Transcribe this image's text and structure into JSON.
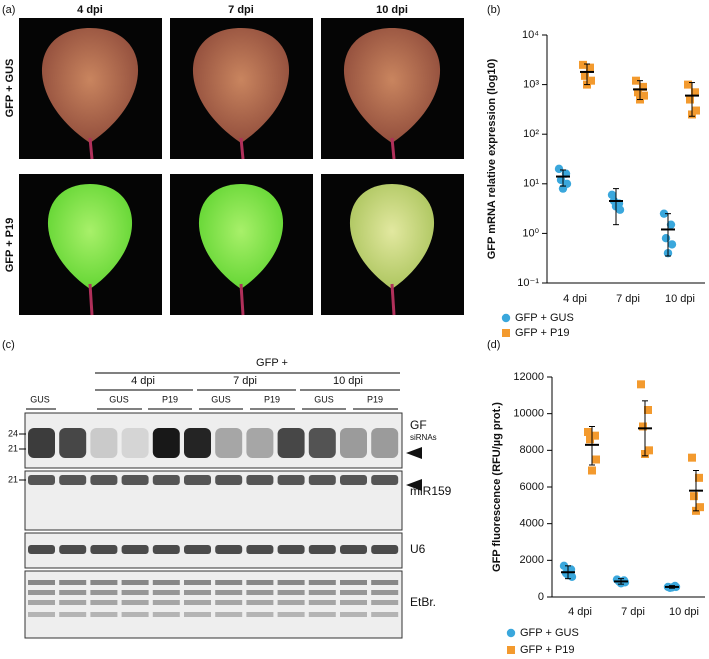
{
  "panel_a": {
    "label": "(a)",
    "columns": [
      "4 dpi",
      "7 dpi",
      "10 dpi"
    ],
    "rows": [
      "GFP + GUS",
      "GFP + P19"
    ]
  },
  "panel_c": {
    "label": "(c)",
    "group": "GFP +",
    "timepoints": [
      "4 dpi",
      "7 dpi",
      "10 dpi"
    ],
    "lanes": [
      "GUS",
      "GUS",
      "P19",
      "GUS",
      "P19",
      "GUS",
      "P19"
    ],
    "markers": [
      "24",
      "21",
      "21"
    ],
    "blots": [
      "GF",
      "siRNAs",
      "miR159",
      "U6",
      "EtBr."
    ]
  },
  "chart_data": [
    {
      "type": "dotplot",
      "panel": "(b)",
      "ylabel": "GFP mRNA relative expression (log10)",
      "log_scale": true,
      "categories": [
        "4 dpi",
        "7 dpi",
        "10 dpi"
      ],
      "ylim": [
        0.1,
        10000
      ],
      "yticks": [
        {
          "value": 0.1,
          "label": "10⁻¹"
        },
        {
          "value": 1,
          "label": "10⁰"
        },
        {
          "value": 10,
          "label": "10¹"
        },
        {
          "value": 100,
          "label": "10²"
        },
        {
          "value": 1000,
          "label": "10³"
        },
        {
          "value": 10000,
          "label": "10⁴"
        }
      ],
      "series": [
        {
          "name": "GFP + GUS",
          "color": "#3aa7dc",
          "marker": "circle",
          "points": [
            [
              20,
              16,
              12,
              10,
              8
            ],
            [
              6,
              4,
              4.5,
              3,
              3.5
            ],
            [
              2.5,
              1.5,
              0.8,
              0.6,
              0.4
            ]
          ],
          "means": [
            14,
            4.5,
            1.2
          ],
          "err_low": [
            9,
            1.5,
            0.35
          ],
          "err_high": [
            19,
            8,
            2.5
          ]
        },
        {
          "name": "GFP + P19",
          "color": "#f39a2e",
          "marker": "square",
          "points": [
            [
              2500,
              2200,
              1500,
              1200,
              1000
            ],
            [
              1200,
              900,
              700,
              600,
              500
            ],
            [
              1000,
              700,
              500,
              300,
              250
            ]
          ],
          "means": [
            1800,
            800,
            600
          ],
          "err_low": [
            1000,
            500,
            230
          ],
          "err_high": [
            2600,
            1200,
            1100
          ]
        }
      ]
    },
    {
      "type": "dotplot",
      "panel": "(d)",
      "ylabel": "GFP fluorescence (RFU/µg prot.)",
      "log_scale": false,
      "categories": [
        "4 dpi",
        "7 dpi",
        "10 dpi"
      ],
      "ylim": [
        0,
        12000
      ],
      "yticks": [
        0,
        2000,
        4000,
        6000,
        8000,
        10000,
        12000
      ],
      "series": [
        {
          "name": "GFP + GUS",
          "color": "#3aa7dc",
          "marker": "circle",
          "points": [
            [
              1700,
              1500,
              1300,
              1100,
              1200
            ],
            [
              950,
              900,
              850,
              800,
              750
            ],
            [
              550,
              600,
              500,
              550,
              520
            ]
          ],
          "means": [
            1350,
            850,
            550
          ],
          "err_low": [
            1000,
            700,
            480
          ],
          "err_high": [
            1700,
            1000,
            620
          ]
        },
        {
          "name": "GFP + P19",
          "color": "#f39a2e",
          "marker": "square",
          "points": [
            [
              9000,
              8800,
              8600,
              7500,
              6900
            ],
            [
              11600,
              10200,
              9300,
              8000,
              7800
            ],
            [
              7600,
              6500,
              5500,
              4900,
              4700
            ]
          ],
          "means": [
            8300,
            9200,
            5800
          ],
          "err_low": [
            7200,
            7700,
            4700
          ],
          "err_high": [
            9300,
            10700,
            6900
          ]
        }
      ]
    }
  ]
}
